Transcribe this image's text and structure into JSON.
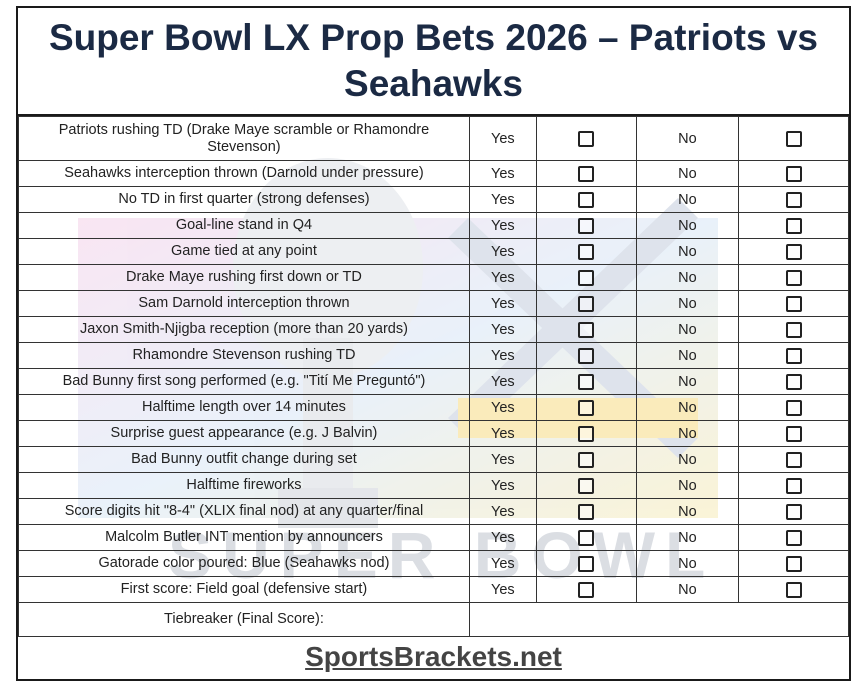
{
  "title": "Super Bowl LX Prop Bets 2026 – Patriots vs Seahawks",
  "yes_label": "Yes",
  "no_label": "No",
  "props": [
    "Patriots rushing TD (Drake Maye scramble or Rhamondre Stevenson)",
    "Seahawks interception thrown (Darnold under pressure)",
    "No TD in first quarter (strong defenses)",
    "Goal-line stand in Q4",
    "Game tied at any point",
    "Drake Maye rushing first down or TD",
    "Sam Darnold interception thrown",
    "Jaxon Smith-Njigba reception (more than 20 yards)",
    "Rhamondre Stevenson rushing TD",
    "Bad Bunny first song performed (e.g. \"Tití Me Preguntó\")",
    "Halftime length over 14 minutes",
    "Surprise guest appearance (e.g. J Balvin)",
    "Bad Bunny outfit change during set",
    "Halftime fireworks",
    "Score digits hit \"8-4\" (XLIX final nod) at any quarter/final",
    "Malcolm Butler INT mention by announcers",
    "Gatorade color poured: Blue (Seahawks nod)",
    "First score: Field goal (defensive start)"
  ],
  "tiebreaker_label": "Tiebreaker (Final Score):",
  "tiebreaker_value": "",
  "background_logo_text": "SUPER BOWL",
  "footer": "SportsBrackets.net",
  "colors": {
    "title": "#1b2a44",
    "border": "#1a1a1a",
    "footer": "#444444"
  }
}
